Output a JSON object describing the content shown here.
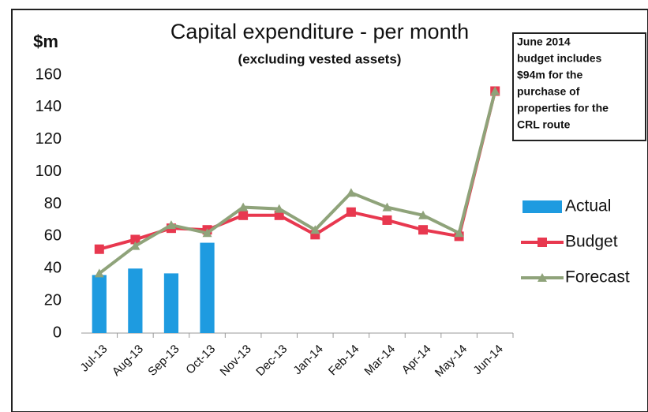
{
  "chart_data": {
    "type": "combo",
    "title": "Capital expenditure - per month",
    "subtitle": "(excluding vested assets)",
    "y_label": "$m",
    "annotation": [
      "June 2014",
      "budget includes",
      "$94m for the",
      "purchase of",
      "properties for the",
      "CRL route"
    ],
    "categories": [
      "Jul-13",
      "Aug-13",
      "Sep-13",
      "Oct-13",
      "Nov-13",
      "Dec-13",
      "Jan-14",
      "Feb-14",
      "Mar-14",
      "Apr-14",
      "May-14",
      "Jun-14"
    ],
    "series": [
      {
        "name": "Actual",
        "type": "bar",
        "color": "#1e9be0",
        "values": [
          36,
          40,
          37,
          56,
          null,
          null,
          null,
          null,
          null,
          null,
          null,
          null
        ]
      },
      {
        "name": "Budget",
        "type": "line",
        "marker": "square",
        "color": "#e8384f",
        "values": [
          52,
          58,
          65,
          64,
          73,
          73,
          61,
          75,
          70,
          64,
          60,
          150
        ]
      },
      {
        "name": "Forecast",
        "type": "line",
        "marker": "triangle",
        "color": "#8fa37a",
        "values": [
          37,
          54,
          67,
          62,
          78,
          77,
          64,
          87,
          78,
          73,
          62,
          150
        ]
      }
    ],
    "ylim": [
      0,
      160
    ],
    "yticks": [
      0,
      20,
      40,
      60,
      80,
      100,
      120,
      140,
      160
    ],
    "grid": false,
    "legend": "right"
  }
}
